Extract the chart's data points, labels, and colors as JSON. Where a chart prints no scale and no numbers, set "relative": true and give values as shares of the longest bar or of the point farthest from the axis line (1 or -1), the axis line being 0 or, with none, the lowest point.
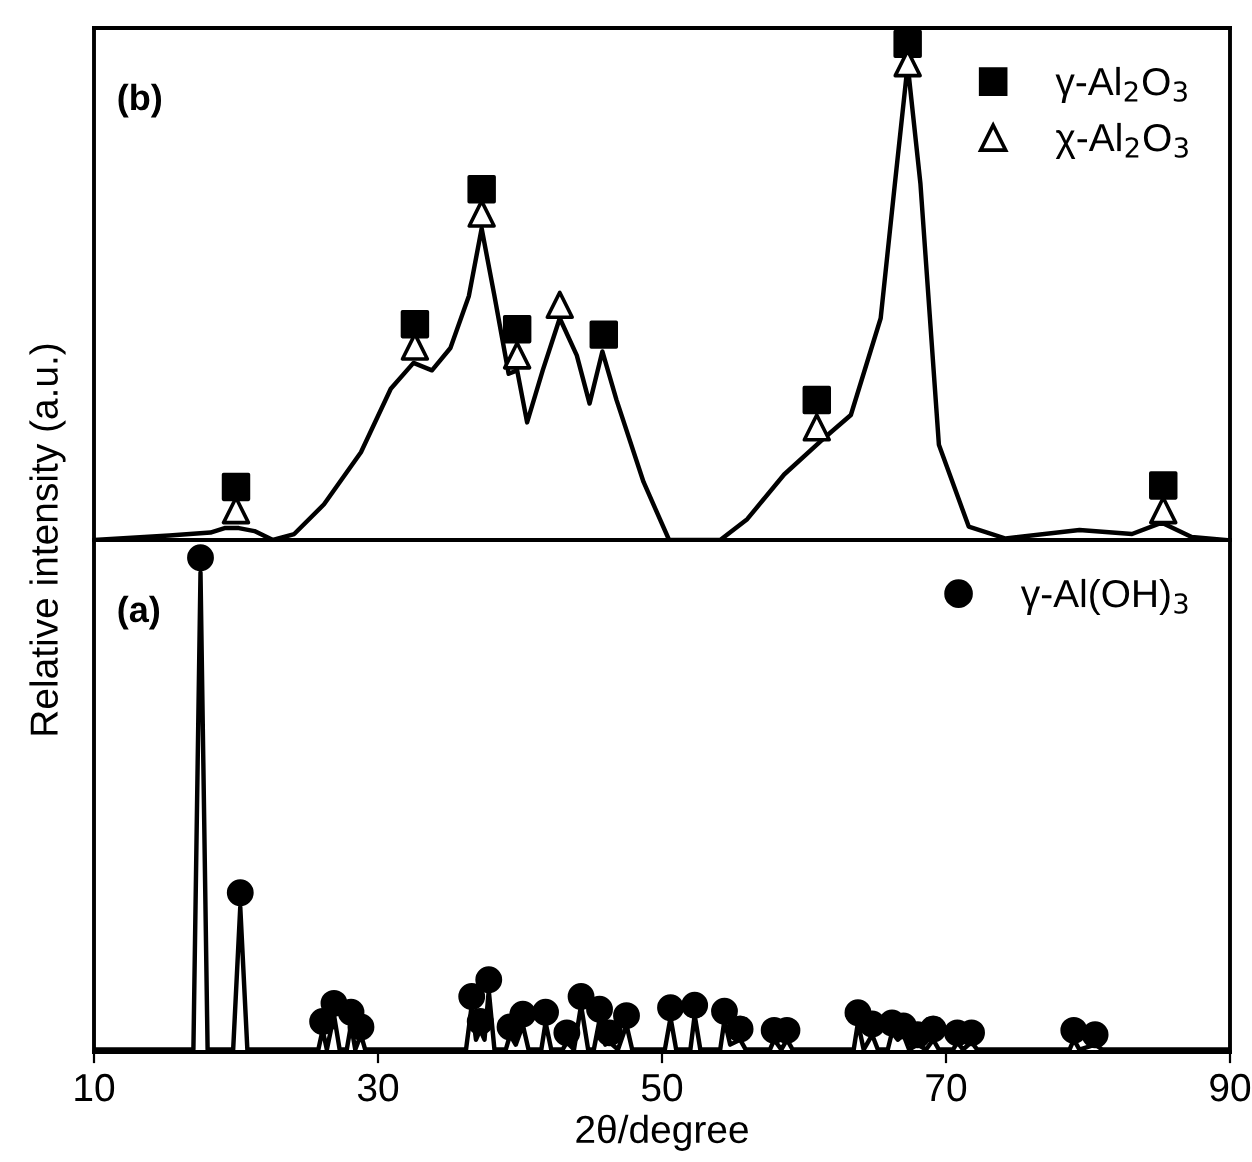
{
  "chart_data": [
    {
      "type": "line",
      "relative": true,
      "xlim": [
        10,
        90
      ],
      "xticks": [
        10,
        30,
        50,
        70,
        90
      ],
      "tick_labels": false,
      "legend": "top right",
      "grid": false,
      "annotations": [
        "(b)"
      ],
      "series": [
        {
          "color": "#000000",
          "marker": "none",
          "x": [
            10,
            15.3,
            18.2,
            19.2,
            20.2,
            21.3,
            22.6,
            24.1,
            26.2,
            28.8,
            30.9,
            32.5,
            33.8,
            35.1,
            36.4,
            37.3,
            38.2,
            39.2,
            39.8,
            40.5,
            41.6,
            42.8,
            44.0,
            44.9,
            45.8,
            46.8,
            48.7,
            50.5,
            54.1,
            56.0,
            58.6,
            61.2,
            63.3,
            65.4,
            66.4,
            67.3,
            68.2,
            69.5,
            71.6,
            74.2,
            79.4,
            83.1,
            85.2,
            87.3,
            89.7
          ],
          "values": [
            0,
            0.009,
            0.015,
            0.024,
            0.024,
            0.018,
            0,
            0.012,
            0.072,
            0.177,
            0.305,
            0.357,
            0.342,
            0.387,
            0.492,
            0.628,
            0.492,
            0.335,
            0.342,
            0.237,
            0.342,
            0.447,
            0.372,
            0.275,
            0.38,
            0.282,
            0.117,
            0,
            0,
            0.042,
            0.132,
            0.2,
            0.252,
            0.447,
            0.718,
            0.958,
            0.718,
            0.192,
            0.027,
            0.003,
            0.02,
            0.012,
            0.035,
            0.006,
            0
          ]
        },
        {
          "type": "scatter",
          "name": "γ-Al$_{2}$O$_{3}$",
          "color": "#000000",
          "marker": "square",
          "x": [
            20.0,
            32.6,
            37.3,
            39.8,
            45.9,
            60.9,
            67.3,
            85.3
          ],
          "values": [
            0.107,
            0.435,
            0.707,
            0.425,
            0.414,
            0.282,
            1,
            0.11
          ]
        },
        {
          "type": "scatter",
          "name": "χ-Al$_{2}$O$_{3}$",
          "color": "#000000",
          "marker": "triangle",
          "x": [
            20.0,
            32.6,
            37.3,
            39.8,
            42.8,
            60.9,
            67.3,
            85.3
          ],
          "values": [
            0.06,
            0.39,
            0.658,
            0.372,
            0.474,
            0.227,
            0.961,
            0.06
          ]
        }
      ]
    },
    {
      "type": "line",
      "relative": true,
      "xlim": [
        10,
        90
      ],
      "xticks": [
        10,
        30,
        50,
        70,
        90
      ],
      "tick_labels": "x",
      "legend": "top right",
      "grid": false,
      "xlabel": "2θ/degree",
      "ylabel": "Relative intensity (a.u.)",
      "annotations": [
        "(a)"
      ],
      "series": [
        {
          "color": "#000000",
          "marker": "none",
          "x": [
            10,
            17.0,
            17.5,
            18.0,
            19.8,
            20.3,
            20.8,
            25.8,
            26.1,
            26.4,
            26.9,
            27.3,
            27.8,
            28.1,
            28.4,
            28.8,
            29.1,
            36.2,
            36.6,
            36.9,
            37.2,
            37.5,
            37.8,
            38.2,
            39.0,
            39.3,
            39.7,
            40.2,
            40.6,
            41.5,
            41.8,
            42.2,
            43.0,
            43.3,
            43.8,
            44.3,
            44.8,
            45.2,
            45.6,
            46.0,
            46.3,
            46.9,
            47.5,
            47.9,
            50.2,
            50.6,
            51.0,
            52.0,
            52.3,
            52.7,
            54.1,
            54.4,
            54.8,
            55.5,
            55.9,
            57.6,
            57.9,
            58.4,
            58.8,
            59.2,
            63.5,
            63.8,
            64.2,
            64.8,
            65.2,
            65.9,
            66.2,
            66.6,
            67.0,
            67.4,
            68.0,
            68.6,
            69.1,
            69.5,
            70.5,
            70.8,
            71.2,
            71.8,
            72.2,
            78.7,
            79.0,
            79.4,
            80.5,
            81.0,
            90
          ],
          "values": [
            0,
            0,
            0.97,
            0,
            0,
            0.29,
            0,
            0,
            0.04,
            0,
            0.07,
            0,
            0,
            0.05,
            0,
            0.03,
            0,
            0,
            0.09,
            0.02,
            0.04,
            0.02,
            0.12,
            0,
            0,
            0.03,
            0.01,
            0.05,
            0,
            0,
            0.055,
            0,
            0,
            0.015,
            0,
            0.09,
            0,
            0,
            0.06,
            0.01,
            0.015,
            0,
            0.05,
            0,
            0,
            0.065,
            0,
            0,
            0.07,
            0,
            0,
            0.06,
            0.01,
            0.02,
            0,
            0,
            0.02,
            0,
            0.02,
            0,
            0,
            0.055,
            0,
            0.03,
            0,
            0,
            0.035,
            0.02,
            0.03,
            0,
            0.01,
            0,
            0.02,
            0,
            0,
            0.015,
            0,
            0.015,
            0,
            0,
            0.02,
            0,
            0.01,
            0,
            0
          ]
        },
        {
          "type": "scatter",
          "name": "γ-Al(OH)$_{3}$",
          "color": "#000000",
          "marker": "circle",
          "x": [
            17.5,
            20.3,
            26.1,
            26.9,
            28.1,
            28.8,
            36.6,
            37.2,
            37.8,
            39.3,
            40.2,
            41.8,
            43.3,
            44.3,
            45.6,
            46.3,
            47.5,
            50.6,
            52.3,
            54.4,
            55.5,
            57.9,
            58.8,
            63.8,
            64.8,
            66.2,
            67.0,
            68.0,
            69.1,
            70.8,
            71.8,
            79.0,
            80.5
          ],
          "values": [
            1,
            0.319,
            0.057,
            0.094,
            0.076,
            0.046,
            0.108,
            0.057,
            0.142,
            0.046,
            0.072,
            0.076,
            0.034,
            0.108,
            0.082,
            0.034,
            0.069,
            0.085,
            0.09,
            0.078,
            0.042,
            0.039,
            0.039,
            0.075,
            0.052,
            0.054,
            0.048,
            0.03,
            0.042,
            0.034,
            0.034,
            0.039,
            0.03
          ]
        }
      ]
    }
  ]
}
